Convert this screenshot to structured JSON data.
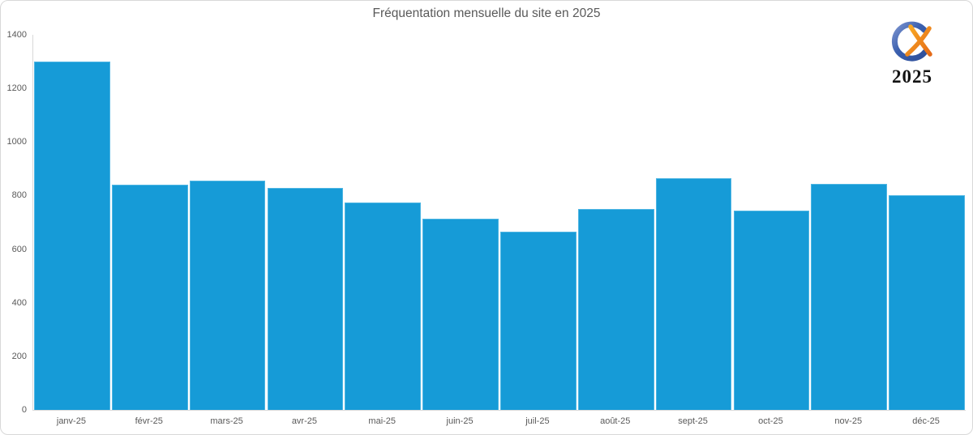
{
  "page": {
    "background": "#ffffff",
    "border_color": "#d8d8d8"
  },
  "logo": {
    "year_label": "2025",
    "blue": "#3a5fae",
    "orange": "#ef7f1e"
  },
  "chart_data": {
    "type": "bar",
    "title": "Fréquentation mensuelle du site en 2025",
    "categories": [
      "janv-25",
      "févr-25",
      "mars-25",
      "avr-25",
      "mai-25",
      "juin-25",
      "juil-25",
      "août-25",
      "sept-25",
      "oct-25",
      "nov-25",
      "déc-25"
    ],
    "values": [
      1300,
      840,
      855,
      830,
      775,
      715,
      665,
      750,
      865,
      745,
      845,
      800
    ],
    "xlabel": "",
    "ylabel": "",
    "ylim": [
      0,
      1400
    ],
    "yticks": [
      0,
      200,
      400,
      600,
      800,
      1000,
      1200,
      1400
    ],
    "grid": false,
    "legend": false,
    "bar_color": "#169bd7",
    "bar_border_color": "#4fb6e3",
    "axis_color": "#d9d9d9",
    "label_color": "#595959",
    "title_color": "#595959"
  }
}
